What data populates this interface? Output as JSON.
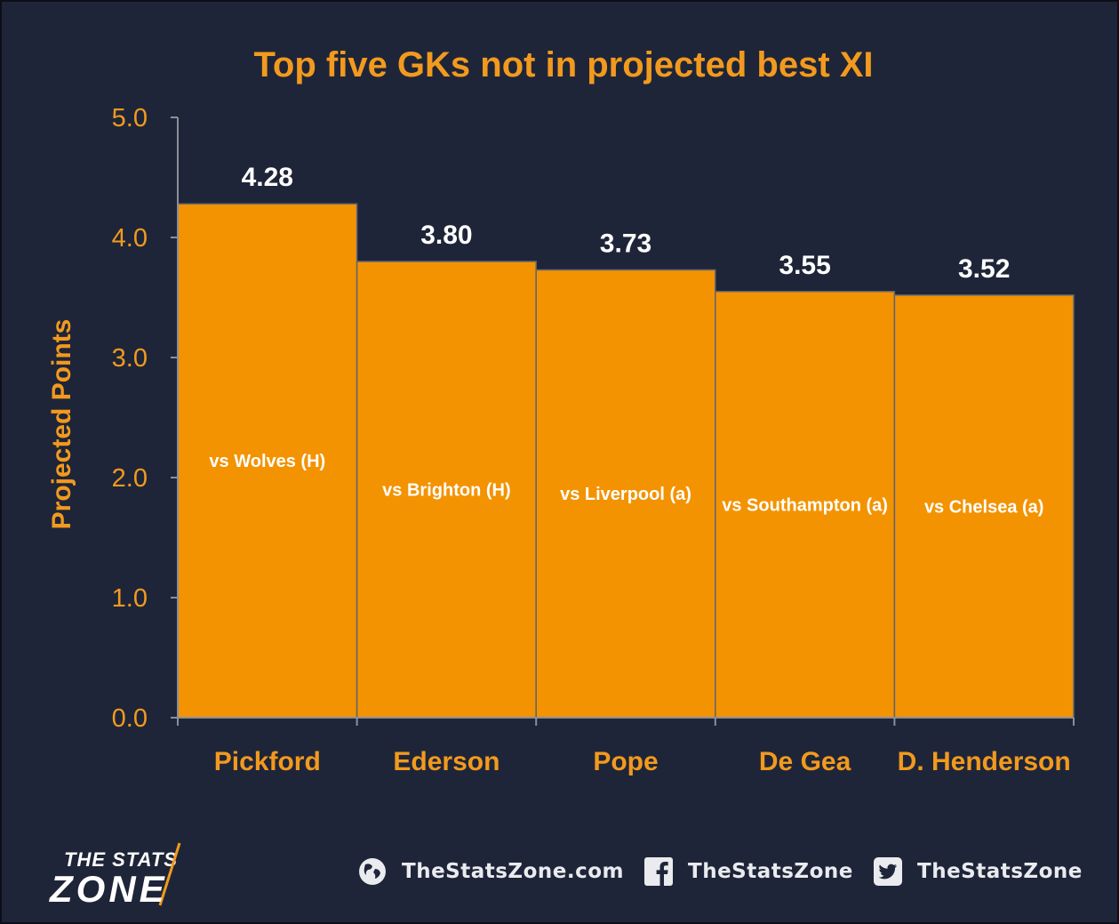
{
  "chart_data": {
    "type": "bar",
    "title": "Top five GKs not in projected best XI",
    "ylabel": "Projected Points",
    "xlabel": "",
    "ylim": [
      0,
      5
    ],
    "yticks": [
      "0.0",
      "1.0",
      "2.0",
      "3.0",
      "4.0",
      "5.0"
    ],
    "grid": false,
    "categories": [
      "Pickford",
      "Ederson",
      "Pope",
      "De Gea",
      "D. Henderson"
    ],
    "values": [
      4.28,
      3.8,
      3.73,
      3.55,
      3.52
    ],
    "value_labels": [
      "4.28",
      "3.80",
      "3.73",
      "3.55",
      "3.52"
    ],
    "bar_annotations": [
      "vs Wolves (H)",
      "vs Brighton (H)",
      "vs Liverpool (a)",
      "vs Southampton (a)",
      "vs Chelsea (a)"
    ],
    "colors": {
      "background": "#1f2538",
      "bar": "#f39301",
      "accent": "#f29a1e",
      "text": "#ffffff",
      "axis": "#8a8f99"
    }
  },
  "footer": {
    "brand_line1": "THE STATS",
    "brand_line2": "ZONE",
    "website": "TheStatsZone.com",
    "facebook": "TheStatsZone",
    "twitter": "TheStatsZone",
    "icons": [
      "globe-icon",
      "facebook-icon",
      "twitter-icon"
    ]
  }
}
